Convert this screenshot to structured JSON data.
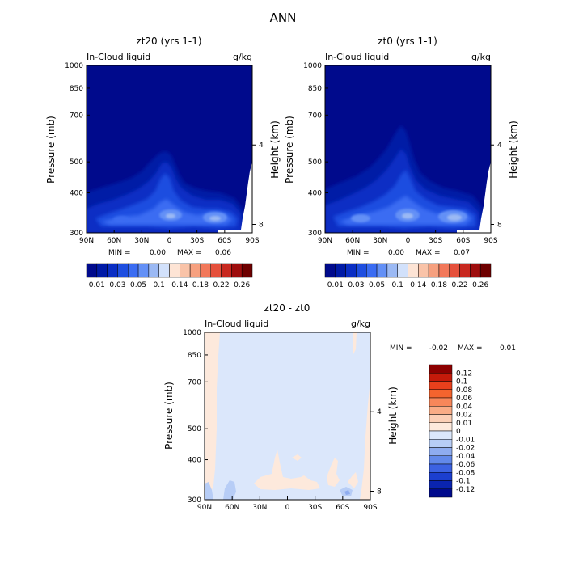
{
  "title": "ANN",
  "panels": [
    {
      "id": "p1",
      "title": "zt20 (yrs 1-1)",
      "variable": "In-Cloud liquid",
      "units": "g/kg",
      "ylabel_left": "Pressure (mb)",
      "ylabel_right": "Height (km)",
      "min_label": "MIN =",
      "min_value": "0.00",
      "max_label": "MAX =",
      "max_value": "0.06"
    },
    {
      "id": "p2",
      "title": "zt0 (yrs 1-1)",
      "variable": "In-Cloud liquid",
      "units": "g/kg",
      "ylabel_left": "Pressure (mb)",
      "ylabel_right": "Height (km)",
      "min_label": "MIN =",
      "min_value": "0.00",
      "max_label": "MAX =",
      "max_value": "0.07"
    },
    {
      "id": "p3",
      "title": "zt20 - zt0",
      "variable": "In-Cloud liquid",
      "units": "g/kg",
      "ylabel_left": "Pressure (mb)",
      "ylabel_right": "Height (km)",
      "min_label": "MIN =",
      "min_value": "-0.02",
      "max_label": "MAX =",
      "max_value": "0.01"
    }
  ],
  "colorbar_abs": {
    "labels": [
      "0.01",
      "0.03",
      "0.05",
      "0.1",
      "0.14",
      "0.18",
      "0.22",
      "0.26"
    ],
    "colors": [
      "#000a8c",
      "#001aa6",
      "#0a2ec4",
      "#1e4ee0",
      "#3a6cf2",
      "#6390f6",
      "#9bb9f4",
      "#d2e1fb",
      "#fde4d5",
      "#f9c3a8",
      "#f6a07f",
      "#f2785a",
      "#e5503b",
      "#c8281f",
      "#9e0d0d",
      "#6e0000"
    ]
  },
  "colorbar_diff": {
    "labels": [
      "0.12",
      "0.1",
      "0.08",
      "0.06",
      "0.04",
      "0.02",
      "0.01",
      "0",
      "-0.01",
      "-0.02",
      "-0.04",
      "-0.06",
      "-0.08",
      "-0.1",
      "-0.12"
    ],
    "colors": [
      "#8c0000",
      "#c41a0a",
      "#e8401c",
      "#f4642e",
      "#f7875a",
      "#f9ac86",
      "#fbcfb6",
      "#fde9dc",
      "#dbe7fb",
      "#b7cdf6",
      "#8eacf0",
      "#6289ea",
      "#3c62e2",
      "#1c3fcf",
      "#0a24b0",
      "#000a8c"
    ]
  },
  "chart_data": [
    {
      "type": "heatmap",
      "title": "zt20 (yrs 1-1)",
      "subtitle_left": "In-Cloud liquid",
      "subtitle_right": "g/kg",
      "xlabel": "",
      "ylabel": "Pressure (mb)",
      "ylabel_right": "Height (km)",
      "x_tick_labels": [
        "90N",
        "60N",
        "30N",
        "0",
        "30S",
        "60S",
        "90S"
      ],
      "x_ticks": [
        90,
        60,
        30,
        0,
        -30,
        -60,
        -90
      ],
      "xlim": [
        90,
        -90
      ],
      "y_tick_labels": [
        "300",
        "400",
        "500",
        "700",
        "850",
        "1000"
      ],
      "y_ticks": [
        300,
        400,
        500,
        700,
        850,
        1000
      ],
      "ylim": [
        1000,
        300
      ],
      "y_scale": "log",
      "y_right_tick_labels": [
        "8",
        "4"
      ],
      "y_right_ticks_km": [
        8,
        4
      ],
      "stats": {
        "min": 0.0,
        "max": 0.06
      },
      "levels": [
        0.01,
        0.02,
        0.03,
        0.04,
        0.05,
        0.07,
        0.1,
        0.12,
        0.14,
        0.16,
        0.18,
        0.2,
        0.22,
        0.24,
        0.26
      ],
      "fill_regions": [
        {
          "level": 0.02,
          "cloud_top_mb": {
            "90N": 820,
            "60N": 760,
            "30N": 690,
            "10N": 540,
            "0": 570,
            "30S": 720,
            "60S": 760,
            "80S": 830
          }
        },
        {
          "level": 0.03,
          "cloud_top_mb": {
            "60N": 820,
            "30N": 770,
            "5N": 620,
            "0": 650,
            "30S": 800,
            "60S": 830
          }
        },
        {
          "level": 0.04,
          "core_centers": [
            {
              "lat": 0,
              "p": 860
            },
            {
              "lat": -55,
              "p": 880
            },
            {
              "lat": 45,
              "p": 880
            }
          ]
        },
        {
          "level": 0.05,
          "core_centers": [
            {
              "lat": 0,
              "p": 880
            },
            {
              "lat": -57,
              "p": 890
            }
          ]
        }
      ],
      "missing_region": "near-surface Antarctic (south of about 75S, below 700 mb)"
    },
    {
      "type": "heatmap",
      "title": "zt0 (yrs 1-1)",
      "subtitle_left": "In-Cloud liquid",
      "subtitle_right": "g/kg",
      "xlabel": "",
      "ylabel": "Pressure (mb)",
      "ylabel_right": "Height (km)",
      "x_tick_labels": [
        "90N",
        "60N",
        "30N",
        "0",
        "30S",
        "60S",
        "90S"
      ],
      "x_ticks": [
        90,
        60,
        30,
        0,
        -30,
        -60,
        -90
      ],
      "xlim": [
        90,
        -90
      ],
      "y_tick_labels": [
        "300",
        "400",
        "500",
        "700",
        "850",
        "1000"
      ],
      "y_ticks": [
        300,
        400,
        500,
        700,
        850,
        1000
      ],
      "ylim": [
        1000,
        300
      ],
      "y_scale": "log",
      "y_right_tick_labels": [
        "8",
        "4"
      ],
      "y_right_ticks_km": [
        8,
        4
      ],
      "stats": {
        "min": 0.0,
        "max": 0.07
      },
      "levels": [
        0.01,
        0.02,
        0.03,
        0.04,
        0.05,
        0.07,
        0.1,
        0.12,
        0.14,
        0.16,
        0.18,
        0.2,
        0.22,
        0.24,
        0.26
      ],
      "fill_regions": [
        {
          "level": 0.02,
          "cloud_top_mb": {
            "90N": 800,
            "60N": 720,
            "30N": 640,
            "5N": 480,
            "0": 520,
            "30S": 680,
            "60S": 740,
            "80S": 820
          }
        },
        {
          "level": 0.03,
          "cloud_top_mb": {
            "60N": 800,
            "30N": 740,
            "5N": 560,
            "0": 600,
            "30S": 780,
            "60S": 820
          }
        },
        {
          "level": 0.04,
          "core_centers": [
            {
              "lat": 0,
              "p": 860
            },
            {
              "lat": -55,
              "p": 870
            },
            {
              "lat": 45,
              "p": 875
            }
          ]
        },
        {
          "level": 0.05,
          "core_centers": [
            {
              "lat": 0,
              "p": 875
            },
            {
              "lat": -57,
              "p": 885
            },
            {
              "lat": 40,
              "p": 890
            }
          ]
        }
      ],
      "missing_region": "near-surface Antarctic (south of about 75S, below 700 mb)"
    },
    {
      "type": "heatmap",
      "title": "zt20 - zt0",
      "subtitle_left": "In-Cloud liquid",
      "subtitle_right": "g/kg",
      "xlabel": "",
      "ylabel": "Pressure (mb)",
      "ylabel_right": "Height (km)",
      "x_tick_labels": [
        "90N",
        "60N",
        "30N",
        "0",
        "30S",
        "60S",
        "90S"
      ],
      "x_ticks": [
        90,
        60,
        30,
        0,
        -30,
        -60,
        -90
      ],
      "xlim": [
        90,
        -90
      ],
      "y_tick_labels": [
        "300",
        "400",
        "500",
        "700",
        "850",
        "1000"
      ],
      "y_ticks": [
        300,
        400,
        500,
        700,
        850,
        1000
      ],
      "ylim": [
        1000,
        300
      ],
      "y_scale": "log",
      "y_right_tick_labels": [
        "8",
        "4"
      ],
      "y_right_ticks_km": [
        8,
        4
      ],
      "stats": {
        "min": -0.02,
        "max": 0.01
      },
      "background_value": -0.005,
      "positive_regions": [
        {
          "value": 0.005,
          "lat": [
            88,
            75
          ],
          "p": [
            300,
            1000
          ]
        },
        {
          "value": 0.005,
          "lat": [
            32,
            2
          ],
          "p": [
            810,
            940
          ]
        },
        {
          "value": 0.005,
          "lat": [
            2,
            -25
          ],
          "p": [
            840,
            940
          ]
        },
        {
          "value": 0.005,
          "lat": [
            -84,
            -90
          ],
          "p": [
            380,
            1000
          ]
        }
      ],
      "negative_regions": [
        {
          "value": -0.015,
          "lat": [
            88,
            80
          ],
          "p": [
            900,
            1000
          ]
        },
        {
          "value": -0.015,
          "lat": [
            70,
            55
          ],
          "p": [
            910,
            1000
          ]
        },
        {
          "value": -0.015,
          "lat": [
            -68,
            -74
          ],
          "p": [
            960,
            1000
          ]
        }
      ]
    }
  ]
}
